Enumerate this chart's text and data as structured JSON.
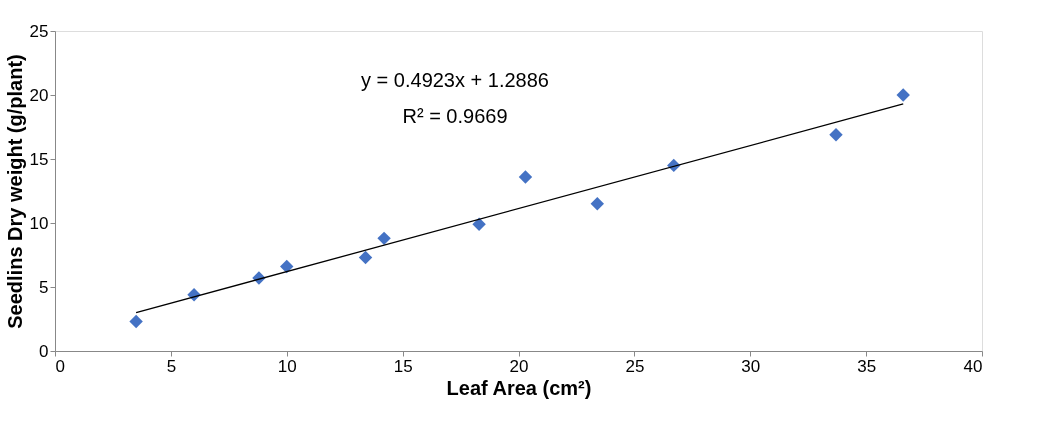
{
  "chart_data": {
    "type": "scatter",
    "xlabel": "Leaf Area (cm²)",
    "ylabel": "Seedlins Dry weight (g/plant)",
    "xlim": [
      0,
      40
    ],
    "xticks": [
      0,
      5,
      10,
      15,
      20,
      25,
      30,
      35,
      40
    ],
    "ylim": [
      0,
      25
    ],
    "yticks": [
      0,
      5,
      10,
      15,
      20,
      25
    ],
    "grid": false,
    "legend": false,
    "series": [
      {
        "marker": "diamond",
        "color": "#4472c4",
        "x": [
          3.5,
          6.0,
          8.8,
          10.0,
          13.4,
          14.2,
          18.3,
          20.3,
          23.4,
          26.7,
          33.7,
          36.6
        ],
        "values": [
          2.3,
          4.4,
          5.7,
          6.6,
          7.3,
          8.8,
          9.9,
          13.6,
          11.5,
          14.5,
          16.9,
          20.0
        ]
      },
      {
        "type": "line",
        "marker": "none",
        "line_style": "solid",
        "color": "#000000",
        "x": [
          3.5,
          36.6
        ],
        "values": [
          3.0,
          19.3
        ]
      }
    ],
    "annotations": [
      "y = 0.4923x + 1.2886",
      "R² = 0.9669"
    ]
  }
}
